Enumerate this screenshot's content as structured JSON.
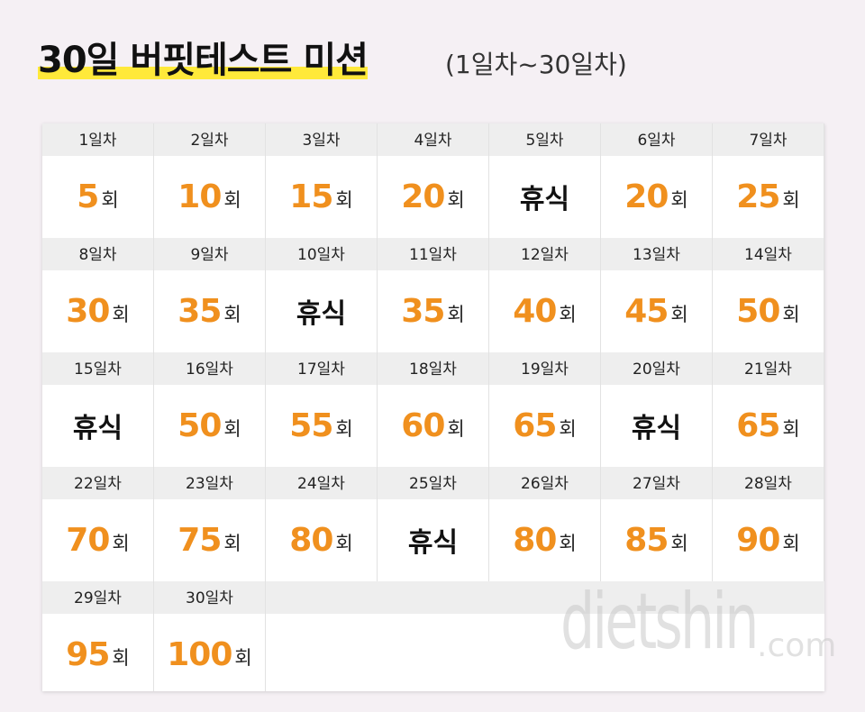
{
  "header": {
    "title": "30일 버핏테스트 미션",
    "subtitle": "(1일차~30일차)"
  },
  "cells": [
    {
      "day": "1일차",
      "count": 5,
      "unit": "회"
    },
    {
      "day": "2일차",
      "count": 10,
      "unit": "회"
    },
    {
      "day": "3일차",
      "count": 15,
      "unit": "회"
    },
    {
      "day": "4일차",
      "count": 20,
      "unit": "회"
    },
    {
      "day": "5일차",
      "rest": "휴식"
    },
    {
      "day": "6일차",
      "count": 20,
      "unit": "회"
    },
    {
      "day": "7일차",
      "count": 25,
      "unit": "회"
    },
    {
      "day": "8일차",
      "count": 30,
      "unit": "회"
    },
    {
      "day": "9일차",
      "count": 35,
      "unit": "회"
    },
    {
      "day": "10일차",
      "rest": "휴식"
    },
    {
      "day": "11일차",
      "count": 35,
      "unit": "회"
    },
    {
      "day": "12일차",
      "count": 40,
      "unit": "회"
    },
    {
      "day": "13일차",
      "count": 45,
      "unit": "회"
    },
    {
      "day": "14일차",
      "count": 50,
      "unit": "회"
    },
    {
      "day": "15일차",
      "rest": "휴식"
    },
    {
      "day": "16일차",
      "count": 50,
      "unit": "회"
    },
    {
      "day": "17일차",
      "count": 55,
      "unit": "회"
    },
    {
      "day": "18일차",
      "count": 60,
      "unit": "회"
    },
    {
      "day": "19일차",
      "count": 65,
      "unit": "회"
    },
    {
      "day": "20일차",
      "rest": "휴식"
    },
    {
      "day": "21일차",
      "count": 65,
      "unit": "회"
    },
    {
      "day": "22일차",
      "count": 70,
      "unit": "회"
    },
    {
      "day": "23일차",
      "count": 75,
      "unit": "회"
    },
    {
      "day": "24일차",
      "count": 80,
      "unit": "회"
    },
    {
      "day": "25일차",
      "rest": "휴식"
    },
    {
      "day": "26일차",
      "count": 80,
      "unit": "회"
    },
    {
      "day": "27일차",
      "count": 85,
      "unit": "회"
    },
    {
      "day": "28일차",
      "count": 90,
      "unit": "회"
    },
    {
      "day": "29일차",
      "count": 95,
      "unit": "회"
    },
    {
      "day": "30일차",
      "count": 100,
      "unit": "회"
    }
  ],
  "watermark": {
    "name": "dietshin",
    "domain": ".com"
  }
}
